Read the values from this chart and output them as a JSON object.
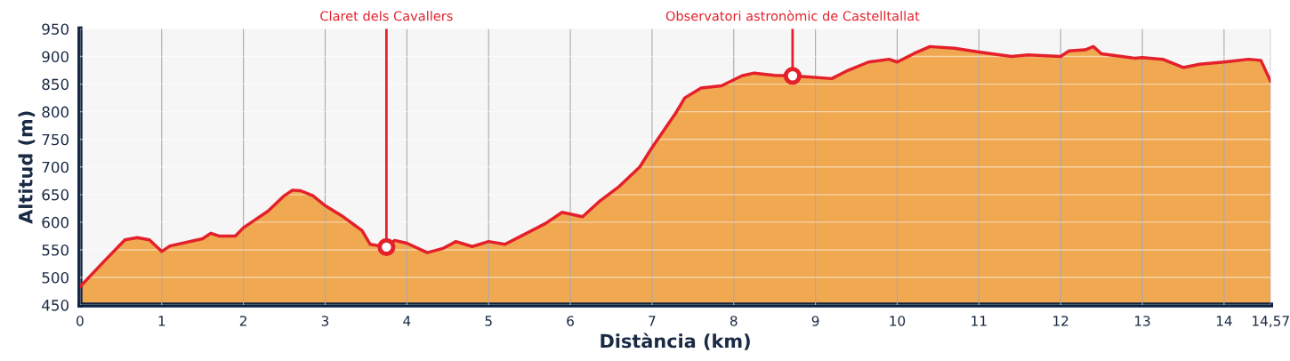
{
  "chart_data": {
    "type": "area",
    "xlabel": "Distància (km)",
    "ylabel": "Altitud (m)",
    "series": [
      {
        "color": "#e3202b",
        "x": [
          0,
          0.3,
          0.55,
          0.7,
          0.85,
          1.0,
          1.1,
          1.5,
          1.6,
          1.7,
          1.9,
          2.0,
          2.1,
          2.3,
          2.5,
          2.6,
          2.7,
          2.85,
          3.0,
          3.2,
          3.45,
          3.55,
          3.75,
          3.85,
          4.0,
          4.25,
          4.45,
          4.6,
          4.8,
          5.0,
          5.2,
          5.4,
          5.7,
          5.9,
          6.15,
          6.35,
          6.6,
          6.85,
          7.0,
          7.3,
          7.4,
          7.6,
          7.85,
          8.1,
          8.25,
          8.5,
          8.72,
          9.2,
          9.4,
          9.65,
          9.9,
          10.0,
          10.2,
          10.4,
          10.7,
          11.0,
          11.4,
          11.6,
          12.0,
          12.1,
          12.3,
          12.4,
          12.5,
          12.9,
          13.0,
          13.25,
          13.5,
          13.7,
          14.0,
          14.3,
          14.45,
          14.57
        ],
        "values": [
          483,
          530,
          568,
          572,
          568,
          547,
          557,
          570,
          580,
          575,
          575,
          590,
          600,
          620,
          648,
          658,
          657,
          648,
          630,
          612,
          585,
          560,
          555,
          567,
          562,
          545,
          553,
          565,
          556,
          565,
          560,
          575,
          598,
          618,
          610,
          637,
          665,
          700,
          735,
          800,
          825,
          843,
          847,
          865,
          870,
          866,
          865,
          860,
          875,
          890,
          895,
          890,
          905,
          918,
          915,
          908,
          900,
          903,
          900,
          910,
          912,
          918,
          905,
          897,
          898,
          895,
          880,
          886,
          890,
          895,
          893,
          855
        ]
      }
    ],
    "annotations": [
      {
        "text": "Claret dels Cavallers",
        "x": 3.75,
        "y": 555
      },
      {
        "text": "Observatori astronòmic de Castelltallat",
        "x": 8.72,
        "y": 865
      }
    ],
    "xlim": [
      0,
      14.57
    ],
    "ylim": [
      450,
      950
    ],
    "xticks": [
      0,
      1,
      2,
      3,
      4,
      5,
      6,
      7,
      8,
      9,
      10,
      11,
      12,
      13,
      14,
      {
        "value": 14.57,
        "label": "14,57"
      }
    ],
    "yticks": [
      450,
      500,
      550,
      600,
      650,
      700,
      750,
      800,
      850,
      900,
      950
    ],
    "grid": true
  }
}
